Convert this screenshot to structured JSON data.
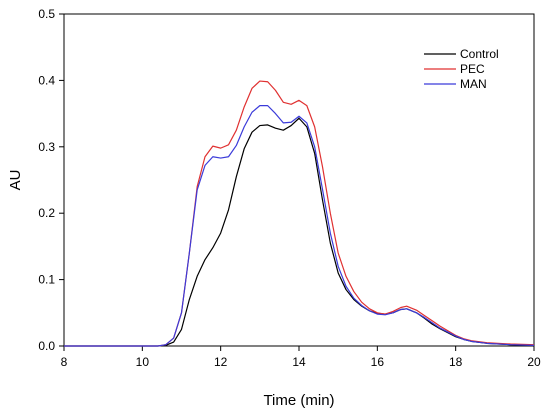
{
  "chart_data": {
    "type": "line",
    "title": "",
    "xlabel": "Time (min)",
    "ylabel": "AU",
    "xlim": [
      8,
      20
    ],
    "ylim": [
      0,
      0.5
    ],
    "x_ticks": [
      8,
      10,
      12,
      14,
      16,
      18,
      20
    ],
    "y_ticks": [
      0.0,
      0.1,
      0.2,
      0.3,
      0.4,
      0.5
    ],
    "y_tick_labels": [
      "0.0",
      "0.1",
      "0.2",
      "0.3",
      "0.4",
      "0.5"
    ],
    "grid": false,
    "legend": {
      "placement": "top-right"
    },
    "series": [
      {
        "name": "Control",
        "color": "#000000",
        "points": [
          [
            8,
            0.0
          ],
          [
            10,
            0.0
          ],
          [
            10.4,
            0.0
          ],
          [
            10.6,
            0.001
          ],
          [
            10.8,
            0.006
          ],
          [
            11.0,
            0.025
          ],
          [
            11.2,
            0.07
          ],
          [
            11.4,
            0.105
          ],
          [
            11.6,
            0.13
          ],
          [
            11.8,
            0.148
          ],
          [
            12.0,
            0.17
          ],
          [
            12.2,
            0.205
          ],
          [
            12.4,
            0.255
          ],
          [
            12.6,
            0.297
          ],
          [
            12.8,
            0.322
          ],
          [
            13.0,
            0.332
          ],
          [
            13.2,
            0.333
          ],
          [
            13.4,
            0.328
          ],
          [
            13.6,
            0.325
          ],
          [
            13.8,
            0.332
          ],
          [
            14.0,
            0.343
          ],
          [
            14.2,
            0.33
          ],
          [
            14.4,
            0.29
          ],
          [
            14.6,
            0.22
          ],
          [
            14.8,
            0.155
          ],
          [
            15.0,
            0.11
          ],
          [
            15.2,
            0.085
          ],
          [
            15.4,
            0.07
          ],
          [
            15.6,
            0.06
          ],
          [
            15.8,
            0.053
          ],
          [
            16.0,
            0.049
          ],
          [
            16.2,
            0.048
          ],
          [
            16.4,
            0.05
          ],
          [
            16.6,
            0.055
          ],
          [
            16.75,
            0.056
          ],
          [
            17.0,
            0.05
          ],
          [
            17.2,
            0.042
          ],
          [
            17.4,
            0.033
          ],
          [
            17.6,
            0.026
          ],
          [
            17.8,
            0.02
          ],
          [
            18.0,
            0.014
          ],
          [
            18.2,
            0.01
          ],
          [
            18.4,
            0.007
          ],
          [
            18.8,
            0.004
          ],
          [
            19.4,
            0.002
          ],
          [
            20,
            0.001
          ]
        ]
      },
      {
        "name": "PEC",
        "color": "#e03131",
        "points": [
          [
            8,
            0.0
          ],
          [
            10,
            0.0
          ],
          [
            10.4,
            0.0
          ],
          [
            10.6,
            0.002
          ],
          [
            10.8,
            0.012
          ],
          [
            11.0,
            0.05
          ],
          [
            11.2,
            0.14
          ],
          [
            11.4,
            0.24
          ],
          [
            11.6,
            0.285
          ],
          [
            11.8,
            0.301
          ],
          [
            12.0,
            0.298
          ],
          [
            12.2,
            0.303
          ],
          [
            12.4,
            0.325
          ],
          [
            12.6,
            0.36
          ],
          [
            12.8,
            0.388
          ],
          [
            13.0,
            0.399
          ],
          [
            13.2,
            0.398
          ],
          [
            13.4,
            0.385
          ],
          [
            13.6,
            0.367
          ],
          [
            13.8,
            0.364
          ],
          [
            14.0,
            0.37
          ],
          [
            14.2,
            0.362
          ],
          [
            14.4,
            0.33
          ],
          [
            14.6,
            0.27
          ],
          [
            14.8,
            0.2
          ],
          [
            15.0,
            0.14
          ],
          [
            15.2,
            0.105
          ],
          [
            15.4,
            0.082
          ],
          [
            15.6,
            0.066
          ],
          [
            15.8,
            0.056
          ],
          [
            16.0,
            0.05
          ],
          [
            16.2,
            0.048
          ],
          [
            16.4,
            0.052
          ],
          [
            16.6,
            0.058
          ],
          [
            16.75,
            0.06
          ],
          [
            17.0,
            0.054
          ],
          [
            17.2,
            0.046
          ],
          [
            17.4,
            0.038
          ],
          [
            17.6,
            0.03
          ],
          [
            17.8,
            0.023
          ],
          [
            18.0,
            0.016
          ],
          [
            18.2,
            0.011
          ],
          [
            18.4,
            0.008
          ],
          [
            18.8,
            0.005
          ],
          [
            19.4,
            0.003
          ],
          [
            20,
            0.002
          ]
        ]
      },
      {
        "name": "MAN",
        "color": "#3b3bd9",
        "points": [
          [
            8,
            0.0
          ],
          [
            10,
            0.0
          ],
          [
            10.4,
            0.0
          ],
          [
            10.6,
            0.002
          ],
          [
            10.8,
            0.012
          ],
          [
            11.0,
            0.05
          ],
          [
            11.2,
            0.14
          ],
          [
            11.4,
            0.235
          ],
          [
            11.6,
            0.272
          ],
          [
            11.8,
            0.285
          ],
          [
            12.0,
            0.283
          ],
          [
            12.2,
            0.285
          ],
          [
            12.4,
            0.302
          ],
          [
            12.6,
            0.33
          ],
          [
            12.8,
            0.352
          ],
          [
            13.0,
            0.362
          ],
          [
            13.2,
            0.362
          ],
          [
            13.4,
            0.35
          ],
          [
            13.6,
            0.336
          ],
          [
            13.8,
            0.337
          ],
          [
            14.0,
            0.346
          ],
          [
            14.2,
            0.336
          ],
          [
            14.4,
            0.3
          ],
          [
            14.6,
            0.236
          ],
          [
            14.8,
            0.17
          ],
          [
            15.0,
            0.12
          ],
          [
            15.2,
            0.09
          ],
          [
            15.4,
            0.072
          ],
          [
            15.6,
            0.061
          ],
          [
            15.8,
            0.053
          ],
          [
            16.0,
            0.048
          ],
          [
            16.2,
            0.047
          ],
          [
            16.4,
            0.05
          ],
          [
            16.6,
            0.055
          ],
          [
            16.75,
            0.056
          ],
          [
            17.0,
            0.05
          ],
          [
            17.2,
            0.043
          ],
          [
            17.4,
            0.035
          ],
          [
            17.6,
            0.027
          ],
          [
            17.8,
            0.021
          ],
          [
            18.0,
            0.015
          ],
          [
            18.2,
            0.01
          ],
          [
            18.4,
            0.007
          ],
          [
            18.8,
            0.004
          ],
          [
            19.4,
            0.002
          ],
          [
            20,
            0.001
          ]
        ]
      }
    ]
  }
}
